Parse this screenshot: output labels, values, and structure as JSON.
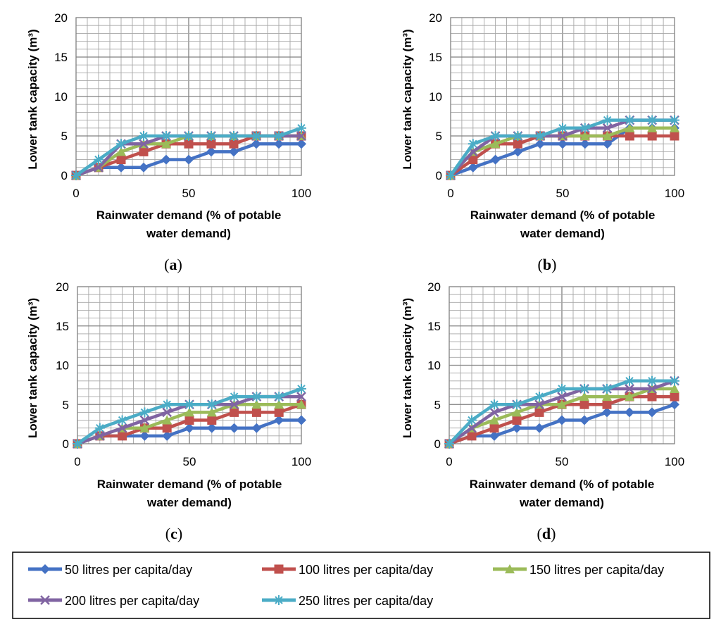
{
  "chart_data": [
    {
      "type": "line",
      "panel_label": "a",
      "xlabel_line1": "Rainwater demand (% of potable",
      "xlabel_line2": "water demand)",
      "ylabel": "Lower tank capacity (m³)",
      "x": [
        0,
        10,
        20,
        30,
        40,
        50,
        60,
        70,
        80,
        90,
        100
      ],
      "xlim": [
        0,
        100
      ],
      "ylim": [
        0,
        20
      ],
      "xticks": [
        0,
        50,
        100
      ],
      "yticks": [
        0,
        5,
        10,
        15,
        20
      ],
      "series": [
        {
          "name": "50 litres per capita/day",
          "values": [
            0,
            1,
            1,
            1,
            2,
            2,
            3,
            3,
            4,
            4,
            4
          ]
        },
        {
          "name": "100 litres per capita/day",
          "values": [
            0,
            1,
            2,
            3,
            4,
            4,
            4,
            4,
            5,
            5,
            5
          ]
        },
        {
          "name": "150 litres per capita/day",
          "values": [
            0,
            1,
            3,
            4,
            4,
            5,
            5,
            5,
            5,
            5,
            5
          ]
        },
        {
          "name": "200 litres per capita/day",
          "values": [
            0,
            1,
            4,
            4,
            5,
            5,
            5,
            5,
            5,
            5,
            5
          ]
        },
        {
          "name": "250 litres per capita/day",
          "values": [
            0,
            2,
            4,
            5,
            5,
            5,
            5,
            5,
            5,
            5,
            6
          ]
        }
      ]
    },
    {
      "type": "line",
      "panel_label": "b",
      "xlabel_line1": "Rainwater demand (% of potable",
      "xlabel_line2": "water demand)",
      "ylabel": "Lower tank capacity (m³)",
      "x": [
        0,
        10,
        20,
        30,
        40,
        50,
        60,
        70,
        80,
        90,
        100
      ],
      "xlim": [
        0,
        100
      ],
      "ylim": [
        0,
        20
      ],
      "xticks": [
        0,
        50,
        100
      ],
      "yticks": [
        0,
        5,
        10,
        15,
        20
      ],
      "series": [
        {
          "name": "50 litres per capita/day",
          "values": [
            0,
            1,
            2,
            3,
            4,
            4,
            4,
            4,
            6,
            6,
            6
          ]
        },
        {
          "name": "100 litres per capita/day",
          "values": [
            0,
            2,
            4,
            4,
            5,
            5,
            5,
            5,
            5,
            5,
            5
          ]
        },
        {
          "name": "150 litres per capita/day",
          "values": [
            0,
            3,
            4,
            5,
            5,
            5,
            5,
            5,
            6,
            6,
            6
          ]
        },
        {
          "name": "200 litres per capita/day",
          "values": [
            0,
            3,
            5,
            5,
            5,
            5,
            6,
            6,
            7,
            7,
            7
          ]
        },
        {
          "name": "250 litres per capita/day",
          "values": [
            0,
            4,
            5,
            5,
            5,
            6,
            6,
            7,
            7,
            7,
            7
          ]
        }
      ]
    },
    {
      "type": "line",
      "panel_label": "c",
      "xlabel_line1": "Rainwater demand (% of potable",
      "xlabel_line2": "water demand)",
      "ylabel": "Lower tank capacity (m³)",
      "x": [
        0,
        10,
        20,
        30,
        40,
        50,
        60,
        70,
        80,
        90,
        100
      ],
      "xlim": [
        0,
        100
      ],
      "ylim": [
        0,
        20
      ],
      "xticks": [
        0,
        50,
        100
      ],
      "yticks": [
        0,
        5,
        10,
        15,
        20
      ],
      "series": [
        {
          "name": "50 litres per capita/day",
          "values": [
            0,
            1,
            1,
            1,
            1,
            2,
            2,
            2,
            2,
            3,
            3
          ]
        },
        {
          "name": "100 litres per capita/day",
          "values": [
            0,
            1,
            1,
            2,
            2,
            3,
            3,
            4,
            4,
            4,
            5
          ]
        },
        {
          "name": "150 litres per capita/day",
          "values": [
            0,
            1,
            2,
            2,
            3,
            4,
            4,
            5,
            5,
            5,
            5
          ]
        },
        {
          "name": "200 litres per capita/day",
          "values": [
            0,
            1,
            2,
            3,
            4,
            5,
            5,
            5,
            6,
            6,
            6
          ]
        },
        {
          "name": "250 litres per capita/day",
          "values": [
            0,
            2,
            3,
            4,
            5,
            5,
            5,
            6,
            6,
            6,
            7
          ]
        }
      ]
    },
    {
      "type": "line",
      "panel_label": "d",
      "xlabel_line1": "Rainwater demand (% of potable",
      "xlabel_line2": "water demand)",
      "ylabel": "Lower tank capacity (m³)",
      "x": [
        0,
        10,
        20,
        30,
        40,
        50,
        60,
        70,
        80,
        90,
        100
      ],
      "xlim": [
        0,
        100
      ],
      "ylim": [
        0,
        20
      ],
      "xticks": [
        0,
        50,
        100
      ],
      "yticks": [
        0,
        5,
        10,
        15,
        20
      ],
      "series": [
        {
          "name": "50 litres per capita/day",
          "values": [
            0,
            1,
            1,
            2,
            2,
            3,
            3,
            4,
            4,
            4,
            5
          ]
        },
        {
          "name": "100 litres per capita/day",
          "values": [
            0,
            1,
            2,
            3,
            4,
            5,
            5,
            5,
            6,
            6,
            6
          ]
        },
        {
          "name": "150 litres per capita/day",
          "values": [
            0,
            2,
            3,
            4,
            5,
            5,
            6,
            6,
            6,
            7,
            7
          ]
        },
        {
          "name": "200 litres per capita/day",
          "values": [
            0,
            2,
            4,
            5,
            5,
            6,
            7,
            7,
            7,
            7,
            8
          ]
        },
        {
          "name": "250 litres per capita/day",
          "values": [
            0,
            3,
            5,
            5,
            6,
            7,
            7,
            7,
            8,
            8,
            8
          ]
        }
      ]
    }
  ],
  "legend": {
    "items": [
      {
        "label": "50 litres per capita/day",
        "color": "#4472C4",
        "marker": "diamond"
      },
      {
        "label": "100 litres per capita/day",
        "color": "#C0504D",
        "marker": "square"
      },
      {
        "label": "150 litres per capita/day",
        "color": "#9BBB59",
        "marker": "triangle"
      },
      {
        "label": "200 litres per capita/day",
        "color": "#8064A2",
        "marker": "x"
      },
      {
        "label": "250 litres per capita/day",
        "color": "#4BACC6",
        "marker": "star"
      }
    ]
  }
}
